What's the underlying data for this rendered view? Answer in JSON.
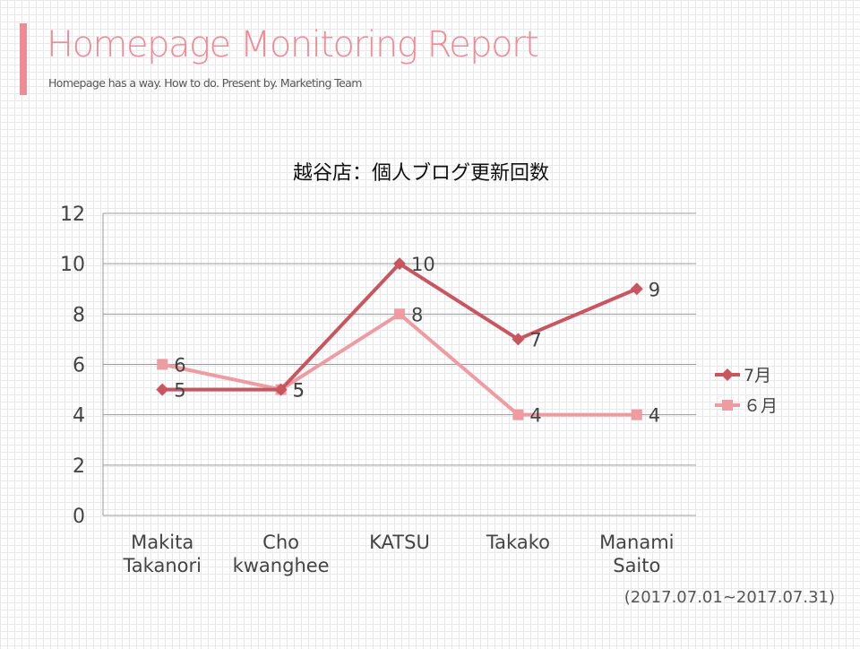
{
  "header": {
    "title": "Homepage Monitoring Report",
    "subtitle": "Homepage has a way. How to do. Present by. Marketing Team"
  },
  "colors": {
    "accent": "#f08a94",
    "title": "#f08a94",
    "series_july": "#c9555f",
    "series_june": "#ee9ba1",
    "gridline": "#9a9a9a",
    "text": "#444444"
  },
  "footer": {
    "date_range": "(2017.07.01~2017.07.31)"
  },
  "chart_data": {
    "type": "line",
    "title": "越谷店：個人ブログ更新回数",
    "categories": [
      [
        "Makita",
        "Takanori"
      ],
      [
        "Cho",
        "kwanghee"
      ],
      [
        "KATSU"
      ],
      [
        "Takako"
      ],
      [
        "Manami",
        "Saito"
      ]
    ],
    "yticks": [
      "0",
      "2",
      "4",
      "6",
      "8",
      "10",
      "12"
    ],
    "ylim": [
      0,
      12
    ],
    "grid": true,
    "legend_position": "right",
    "series": [
      {
        "name": "7月",
        "marker": "diamond",
        "values": [
          5,
          5,
          10,
          7,
          9
        ],
        "labels": [
          "5",
          "5",
          "10",
          "7",
          "9"
        ]
      },
      {
        "name": "６月",
        "marker": "square",
        "values": [
          6,
          5,
          8,
          4,
          4
        ],
        "labels": [
          "6",
          "5",
          "8",
          "4",
          "4"
        ]
      }
    ]
  }
}
